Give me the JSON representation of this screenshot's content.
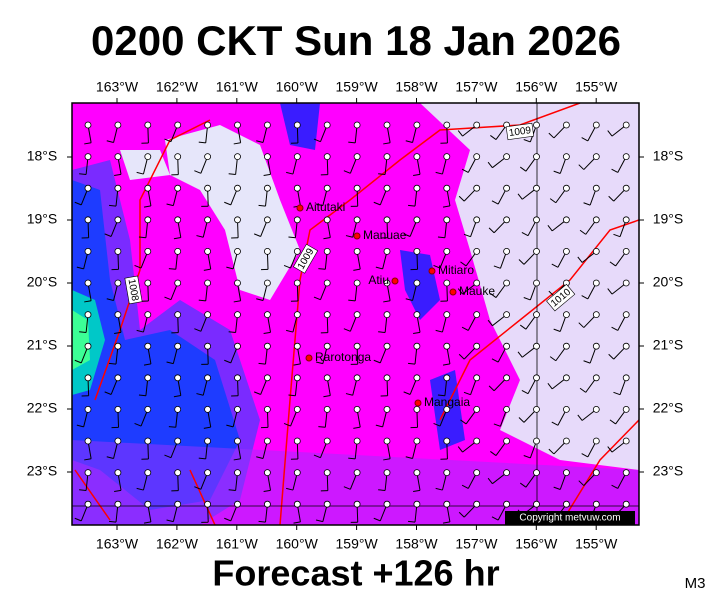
{
  "title": "0200 CKT Sun 18 Jan 2026",
  "map": {
    "longitudes": [
      "163°W",
      "162°W",
      "161°W",
      "160°W",
      "159°W",
      "158°W",
      "157°W",
      "156°W",
      "155°W"
    ],
    "latitudes": [
      "18°S",
      "19°S",
      "20°S",
      "21°S",
      "22°S",
      "23°S"
    ],
    "places": [
      "Aitutaki",
      "Manuae",
      "Atiu",
      "Mitiaro",
      "Mauke",
      "Rarotonga",
      "Mangaia"
    ],
    "isobars": [
      "1009",
      "1009",
      "1008",
      "1010"
    ],
    "copyright": "Copyright metvuw.com"
  },
  "footer": {
    "forecast": "Forecast +126 hr",
    "code": "M3"
  }
}
